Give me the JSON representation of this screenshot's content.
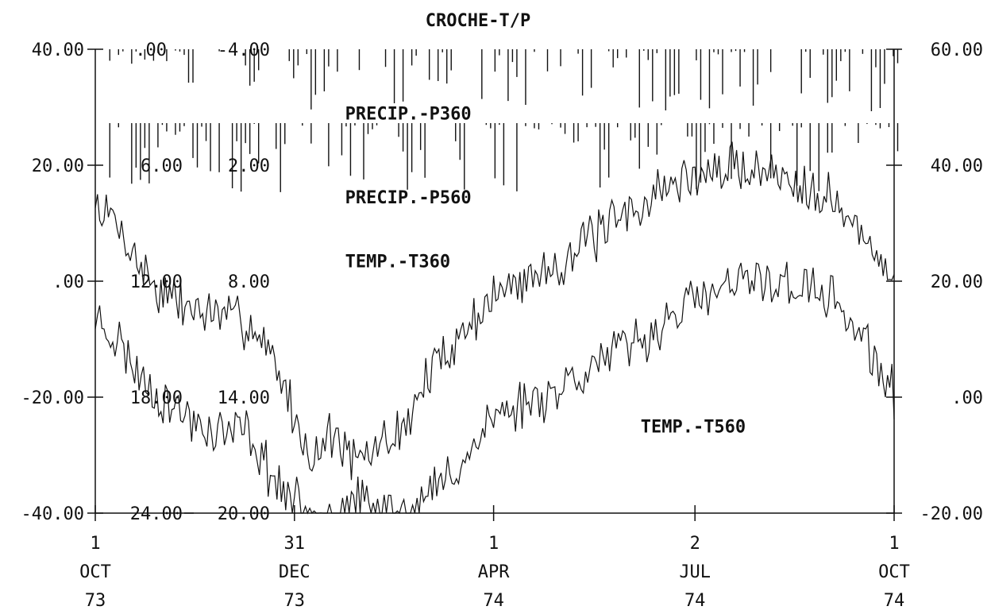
{
  "chart_data": {
    "type": "line",
    "title": "CROCHE-T/P",
    "x_ticks": [
      {
        "day": 0,
        "lines": [
          "1",
          "OCT",
          "73"
        ]
      },
      {
        "day": 91,
        "lines": [
          "31",
          "DEC",
          "73"
        ]
      },
      {
        "day": 182,
        "lines": [
          "1",
          "APR",
          "74"
        ]
      },
      {
        "day": 274,
        "lines": [
          "2",
          "JUL",
          "74"
        ]
      },
      {
        "day": 365,
        "lines": [
          "1",
          "OCT",
          "74"
        ]
      }
    ],
    "x_range_days": [
      0,
      365
    ],
    "left_axis": {
      "ticks": [
        {
          "label": "40.00",
          "value": 40
        },
        {
          "label": "20.00",
          "value": 20
        },
        {
          "label": ".00",
          "value": 0
        },
        {
          "label": "-20.00",
          "value": -20
        },
        {
          "label": "-40.00",
          "value": -40
        }
      ],
      "range": [
        -40,
        40
      ]
    },
    "right_axis": {
      "ticks": [
        {
          "label": "60.00",
          "value": 60
        },
        {
          "label": "40.00",
          "value": 40
        },
        {
          "label": "20.00",
          "value": 20
        },
        {
          "label": ".00",
          "value": 0
        },
        {
          "label": "-20.00",
          "value": -20
        }
      ],
      "range": [
        -20,
        60
      ]
    },
    "inner_scale_1": {
      "ticks": [
        {
          "label": ".00",
          "value": 0
        },
        {
          "label": "6.00",
          "value": 6
        },
        {
          "label": "12.00",
          "value": 12
        },
        {
          "label": "18.00",
          "value": 18
        },
        {
          "label": "24.00",
          "value": 24
        }
      ]
    },
    "inner_scale_2": {
      "ticks": [
        {
          "label": "-4.00",
          "value": -4
        },
        {
          "label": "2.00",
          "value": 2
        },
        {
          "label": "8.00",
          "value": 8
        },
        {
          "label": "14.00",
          "value": 14
        },
        {
          "label": "20.00",
          "value": 20
        }
      ]
    },
    "series": [
      {
        "name": "PRECIP.-P360",
        "kind": "bars-down",
        "baseline": 0,
        "bar_every_days": 2,
        "max": 8,
        "seed": 17
      },
      {
        "name": "PRECIP.-P560",
        "kind": "bars-down",
        "baseline": 6,
        "bar_every_days": 2,
        "max": 14,
        "seed": 41
      },
      {
        "name": "TEMP.-T360",
        "kind": "line",
        "axis": "left",
        "points": [
          [
            0,
            13
          ],
          [
            10,
            10
          ],
          [
            20,
            3
          ],
          [
            30,
            -2
          ],
          [
            40,
            -4
          ],
          [
            55,
            -6
          ],
          [
            70,
            -7
          ],
          [
            80,
            -12
          ],
          [
            88,
            -20
          ],
          [
            95,
            -28
          ],
          [
            100,
            -30
          ],
          [
            108,
            -26
          ],
          [
            120,
            -32
          ],
          [
            130,
            -28
          ],
          [
            140,
            -26
          ],
          [
            150,
            -18
          ],
          [
            160,
            -12
          ],
          [
            170,
            -8
          ],
          [
            178,
            -4
          ],
          [
            185,
            -2
          ],
          [
            195,
            0
          ],
          [
            205,
            2
          ],
          [
            215,
            4
          ],
          [
            225,
            7
          ],
          [
            235,
            9
          ],
          [
            245,
            12
          ],
          [
            255,
            15
          ],
          [
            265,
            17
          ],
          [
            275,
            18
          ],
          [
            285,
            19
          ],
          [
            295,
            20
          ],
          [
            305,
            19
          ],
          [
            315,
            18
          ],
          [
            325,
            17
          ],
          [
            335,
            15
          ],
          [
            345,
            10
          ],
          [
            355,
            5
          ],
          [
            365,
            2
          ]
        ],
        "noise": 3.5,
        "seed": 7
      },
      {
        "name": "TEMP.-T560",
        "kind": "line",
        "axis": "left",
        "points": [
          [
            0,
            -6
          ],
          [
            10,
            -10
          ],
          [
            20,
            -16
          ],
          [
            30,
            -20
          ],
          [
            40,
            -23
          ],
          [
            55,
            -26
          ],
          [
            70,
            -26
          ],
          [
            80,
            -33
          ],
          [
            88,
            -37
          ],
          [
            95,
            -40
          ],
          [
            105,
            -40
          ],
          [
            118,
            -38
          ],
          [
            130,
            -40
          ],
          [
            140,
            -40
          ],
          [
            150,
            -38
          ],
          [
            160,
            -34
          ],
          [
            170,
            -30
          ],
          [
            180,
            -24
          ],
          [
            190,
            -22
          ],
          [
            200,
            -20
          ],
          [
            210,
            -19
          ],
          [
            220,
            -16
          ],
          [
            230,
            -14
          ],
          [
            240,
            -12
          ],
          [
            250,
            -10
          ],
          [
            260,
            -7
          ],
          [
            270,
            -4
          ],
          [
            280,
            -3
          ],
          [
            290,
            -1
          ],
          [
            300,
            0
          ],
          [
            310,
            0
          ],
          [
            320,
            -1
          ],
          [
            330,
            -2
          ],
          [
            340,
            -4
          ],
          [
            350,
            -10
          ],
          [
            358,
            -15
          ],
          [
            365,
            -20
          ]
        ],
        "noise": 3.5,
        "seed": 23
      }
    ],
    "annotations": [
      {
        "text": "PRECIP.-P360",
        "at_day": 104,
        "at_left_value": 29
      },
      {
        "text": "PRECIP.-P560",
        "at_day": 104,
        "at_left_value": 14.5
      },
      {
        "text": "TEMP.-T360",
        "at_day": 104,
        "at_left_value": 3.5
      },
      {
        "text": "TEMP.-T560",
        "at_day": 239,
        "at_left_value": -25
      }
    ],
    "grid": false,
    "legend": "inline annotations"
  }
}
